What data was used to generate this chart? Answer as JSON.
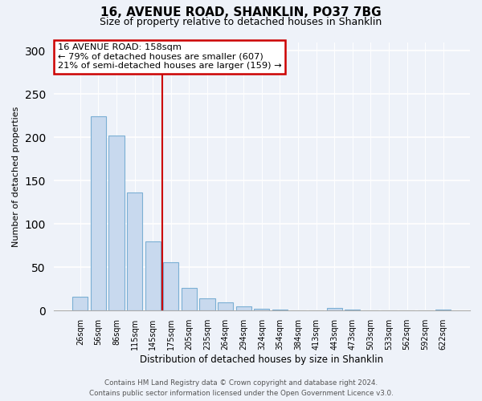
{
  "title": "16, AVENUE ROAD, SHANKLIN, PO37 7BG",
  "subtitle": "Size of property relative to detached houses in Shanklin",
  "xlabel": "Distribution of detached houses by size in Shanklin",
  "ylabel": "Number of detached properties",
  "bar_labels": [
    "26sqm",
    "56sqm",
    "86sqm",
    "115sqm",
    "145sqm",
    "175sqm",
    "205sqm",
    "235sqm",
    "264sqm",
    "294sqm",
    "324sqm",
    "354sqm",
    "384sqm",
    "413sqm",
    "443sqm",
    "473sqm",
    "503sqm",
    "533sqm",
    "562sqm",
    "592sqm",
    "622sqm"
  ],
  "bar_values": [
    16,
    224,
    202,
    136,
    80,
    56,
    26,
    14,
    10,
    5,
    2,
    1,
    0,
    0,
    3,
    1,
    0,
    0,
    0,
    0,
    1
  ],
  "bar_color": "#c8d9ee",
  "bar_edge_color": "#7bafd4",
  "vline_x": 4.5,
  "vline_color": "#cc0000",
  "annotation_title": "16 AVENUE ROAD: 158sqm",
  "annotation_line1": "← 79% of detached houses are smaller (607)",
  "annotation_line2": "21% of semi-detached houses are larger (159) →",
  "annotation_box_color": "#ffffff",
  "annotation_box_edge": "#cc0000",
  "ylim": [
    0,
    310
  ],
  "yticks": [
    0,
    50,
    100,
    150,
    200,
    250,
    300
  ],
  "footer1": "Contains HM Land Registry data © Crown copyright and database right 2024.",
  "footer2": "Contains public sector information licensed under the Open Government Licence v3.0.",
  "bg_color": "#eef2f9"
}
